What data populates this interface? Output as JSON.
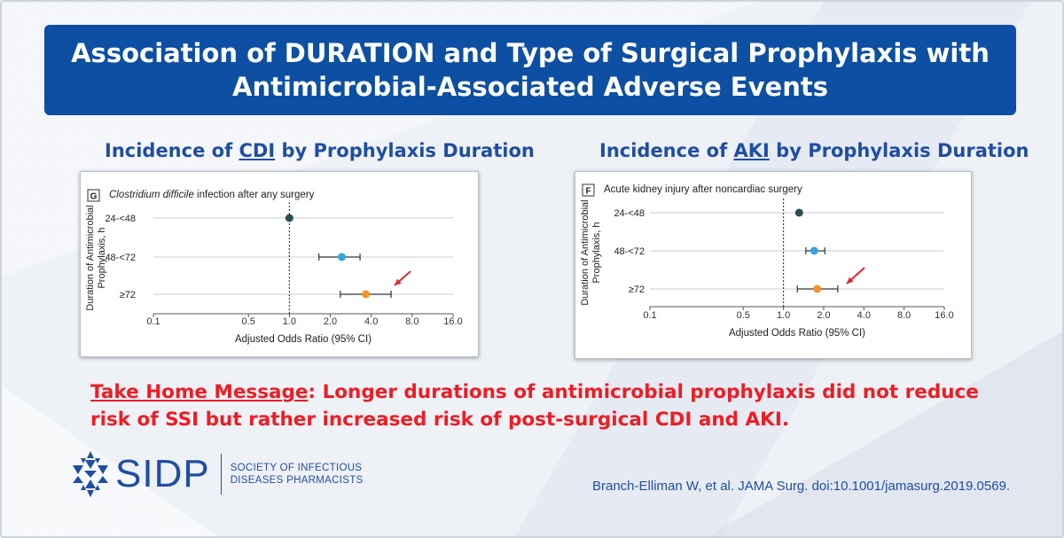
{
  "slide": {
    "title_line1": "Association of DURATION and Type of Surgical Prophylaxis with",
    "title_line2": "Antimicrobial-Associated Adverse Events"
  },
  "panels": [
    {
      "heading_pre": "Incidence of ",
      "heading_key": "CDI",
      "heading_post": " by Prophylaxis Duration"
    },
    {
      "heading_pre": "Incidence of ",
      "heading_key": "AKI",
      "heading_post": " by Prophylaxis Duration"
    }
  ],
  "chart_data": [
    {
      "type": "forest",
      "panel_letter": "G",
      "title_italic": "Clostridium difficile",
      "title_rest": " infection after any surgery",
      "xlabel": "Adjusted Odds Ratio (95% CI)",
      "ylabel_line1": "Duration of Antimicrobial",
      "ylabel_line2": "Prophylaxis, h",
      "x_scale": "log2",
      "xlim": [
        0.1,
        16.0
      ],
      "x_ticks": [
        0.1,
        0.5,
        1.0,
        2.0,
        4.0,
        8.0,
        16.0
      ],
      "x_tick_labels": [
        "0.1",
        "0.5",
        "1.0",
        "2.0",
        "4.0",
        "8.0",
        "16.0"
      ],
      "reference_line": 1.0,
      "categories": [
        "24-<48",
        "48-<72",
        "≥72"
      ],
      "points": [
        {
          "label": "24-<48",
          "or": 1.0,
          "lo": null,
          "hi": null,
          "color": "#2b4f53"
        },
        {
          "label": "48-<72",
          "or": 2.43,
          "lo": 1.65,
          "hi": 3.31,
          "color": "#35a7dc"
        },
        {
          "label": "≥72",
          "or": 3.65,
          "lo": 2.37,
          "hi": 5.6,
          "color": "#f0932f"
        }
      ],
      "annotation": "arrow pointing to ≥72 estimate"
    },
    {
      "type": "forest",
      "panel_letter": "F",
      "title_italic": "",
      "title_rest": "Acute kidney injury after noncardiac surgery",
      "xlabel": "Adjusted Odds Ratio (95% CI)",
      "ylabel_line1": "Duration of Antimicrobial",
      "ylabel_line2": "Prophylaxis, h",
      "x_scale": "log2",
      "xlim": [
        0.1,
        16.0
      ],
      "x_ticks": [
        0.1,
        0.5,
        1.0,
        2.0,
        4.0,
        8.0,
        16.0
      ],
      "x_tick_labels": [
        "0.1",
        "0.5",
        "1.0",
        "2.0",
        "4.0",
        "8.0",
        "16.0"
      ],
      "reference_line": 1.0,
      "categories": [
        "24-<48",
        "48-<72",
        "≥72"
      ],
      "points": [
        {
          "label": "24-<48",
          "or": 1.31,
          "lo": null,
          "hi": null,
          "color": "#2b4f53"
        },
        {
          "label": "48-<72",
          "or": 1.7,
          "lo": 1.47,
          "hi": 2.04,
          "color": "#35a7dc"
        },
        {
          "label": "≥72",
          "or": 1.79,
          "lo": 1.27,
          "hi": 2.55,
          "color": "#f0932f"
        }
      ],
      "annotation": "arrow pointing to ≥72 estimate"
    }
  ],
  "takehome": {
    "label": "Take Home Message",
    "text": ": Longer durations of antimicrobial prophylaxis did not reduce risk of SSI but rather increased risk of post-surgical CDI and AKI."
  },
  "logo": {
    "icon": "sidp-star-icon",
    "word": "SIDP",
    "tag_line1": "SOCIETY OF INFECTIOUS",
    "tag_line2": "DISEASES PHARMACISTS"
  },
  "citation": "Branch-Elliman W, et al. JAMA Surg. doi:10.1001/jamasurg.2019.0569.",
  "colors": {
    "brand_blue": "#0d4fa2",
    "heading_blue": "#1f4ea3",
    "alert_red": "#ee1c24",
    "arrow_red": "#e3242b"
  }
}
